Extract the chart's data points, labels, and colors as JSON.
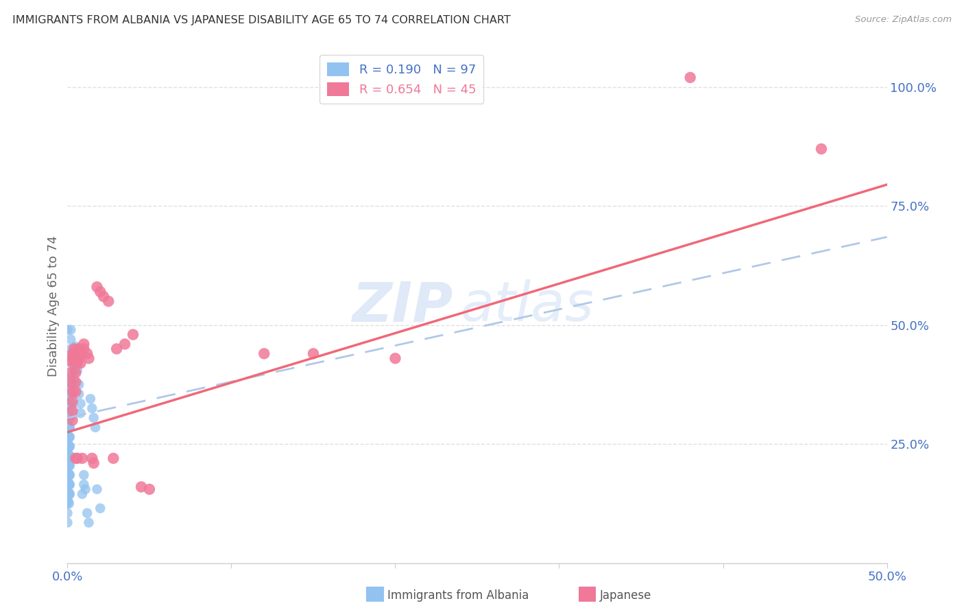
{
  "title": "IMMIGRANTS FROM ALBANIA VS JAPANESE DISABILITY AGE 65 TO 74 CORRELATION CHART",
  "source": "Source: ZipAtlas.com",
  "ylabel": "Disability Age 65 to 74",
  "legend_albania": "R = 0.190   N = 97",
  "legend_japanese": "R = 0.654   N = 45",
  "legend_label_albania": "Immigrants from Albania",
  "legend_label_japanese": "Japanese",
  "watermark_part1": "ZIP",
  "watermark_part2": "atlas",
  "albania_color": "#92c2f0",
  "japanese_color": "#f07898",
  "trendline_albania_color": "#b0c8e8",
  "trendline_japanese_color": "#f06878",
  "title_color": "#333333",
  "axis_label_color": "#4472c4",
  "source_color": "#999999",
  "grid_color": "#e8e8e8",
  "background_color": "#ffffff",
  "xlim": [
    0.0,
    0.5
  ],
  "ylim": [
    0.0,
    1.08
  ],
  "albania_points": [
    [
      0.0,
      0.305
    ],
    [
      0.0,
      0.285
    ],
    [
      0.0,
      0.265
    ],
    [
      0.0,
      0.245
    ],
    [
      0.0,
      0.225
    ],
    [
      0.0,
      0.205
    ],
    [
      0.0,
      0.185
    ],
    [
      0.0,
      0.165
    ],
    [
      0.0,
      0.145
    ],
    [
      0.0,
      0.125
    ],
    [
      0.0,
      0.105
    ],
    [
      0.0,
      0.085
    ],
    [
      0.0,
      0.325
    ],
    [
      0.0,
      0.345
    ],
    [
      0.0,
      0.365
    ],
    [
      0.0,
      0.385
    ],
    [
      0.0,
      0.49
    ],
    [
      0.0005,
      0.29
    ],
    [
      0.0005,
      0.31
    ],
    [
      0.0005,
      0.33
    ],
    [
      0.0005,
      0.25
    ],
    [
      0.0005,
      0.23
    ],
    [
      0.0005,
      0.21
    ],
    [
      0.0005,
      0.19
    ],
    [
      0.0005,
      0.17
    ],
    [
      0.0005,
      0.15
    ],
    [
      0.0005,
      0.13
    ],
    [
      0.001,
      0.305
    ],
    [
      0.001,
      0.285
    ],
    [
      0.001,
      0.265
    ],
    [
      0.001,
      0.245
    ],
    [
      0.001,
      0.225
    ],
    [
      0.001,
      0.205
    ],
    [
      0.001,
      0.185
    ],
    [
      0.001,
      0.165
    ],
    [
      0.001,
      0.145
    ],
    [
      0.001,
      0.125
    ],
    [
      0.001,
      0.325
    ],
    [
      0.001,
      0.345
    ],
    [
      0.001,
      0.365
    ],
    [
      0.001,
      0.285
    ],
    [
      0.001,
      0.265
    ],
    [
      0.001,
      0.245
    ],
    [
      0.001,
      0.225
    ],
    [
      0.001,
      0.205
    ],
    [
      0.001,
      0.185
    ],
    [
      0.001,
      0.165
    ],
    [
      0.001,
      0.145
    ],
    [
      0.0015,
      0.305
    ],
    [
      0.0015,
      0.285
    ],
    [
      0.0015,
      0.265
    ],
    [
      0.0015,
      0.245
    ],
    [
      0.0015,
      0.225
    ],
    [
      0.0015,
      0.205
    ],
    [
      0.0015,
      0.185
    ],
    [
      0.0015,
      0.165
    ],
    [
      0.0015,
      0.145
    ],
    [
      0.0015,
      0.305
    ],
    [
      0.0015,
      0.325
    ],
    [
      0.002,
      0.49
    ],
    [
      0.002,
      0.47
    ],
    [
      0.002,
      0.45
    ],
    [
      0.002,
      0.355
    ],
    [
      0.002,
      0.335
    ],
    [
      0.002,
      0.315
    ],
    [
      0.003,
      0.435
    ],
    [
      0.003,
      0.415
    ],
    [
      0.003,
      0.395
    ],
    [
      0.003,
      0.375
    ],
    [
      0.003,
      0.355
    ],
    [
      0.003,
      0.335
    ],
    [
      0.003,
      0.315
    ],
    [
      0.004,
      0.445
    ],
    [
      0.004,
      0.425
    ],
    [
      0.004,
      0.405
    ],
    [
      0.004,
      0.385
    ],
    [
      0.005,
      0.455
    ],
    [
      0.005,
      0.435
    ],
    [
      0.005,
      0.415
    ],
    [
      0.006,
      0.425
    ],
    [
      0.006,
      0.405
    ],
    [
      0.007,
      0.375
    ],
    [
      0.007,
      0.355
    ],
    [
      0.008,
      0.335
    ],
    [
      0.008,
      0.315
    ],
    [
      0.009,
      0.145
    ],
    [
      0.01,
      0.165
    ],
    [
      0.01,
      0.185
    ],
    [
      0.011,
      0.155
    ],
    [
      0.012,
      0.105
    ],
    [
      0.013,
      0.085
    ],
    [
      0.014,
      0.345
    ],
    [
      0.015,
      0.325
    ],
    [
      0.016,
      0.305
    ],
    [
      0.017,
      0.285
    ],
    [
      0.018,
      0.155
    ],
    [
      0.02,
      0.115
    ]
  ],
  "japanese_points": [
    [
      0.001,
      0.435
    ],
    [
      0.0015,
      0.425
    ],
    [
      0.002,
      0.4
    ],
    [
      0.002,
      0.38
    ],
    [
      0.003,
      0.36
    ],
    [
      0.003,
      0.34
    ],
    [
      0.003,
      0.32
    ],
    [
      0.003,
      0.3
    ],
    [
      0.004,
      0.45
    ],
    [
      0.004,
      0.43
    ],
    [
      0.004,
      0.44
    ],
    [
      0.004,
      0.42
    ],
    [
      0.005,
      0.4
    ],
    [
      0.005,
      0.38
    ],
    [
      0.005,
      0.36
    ],
    [
      0.005,
      0.22
    ],
    [
      0.006,
      0.44
    ],
    [
      0.006,
      0.42
    ],
    [
      0.006,
      0.22
    ],
    [
      0.007,
      0.45
    ],
    [
      0.007,
      0.43
    ],
    [
      0.008,
      0.44
    ],
    [
      0.008,
      0.42
    ],
    [
      0.009,
      0.22
    ],
    [
      0.01,
      0.46
    ],
    [
      0.01,
      0.45
    ],
    [
      0.012,
      0.44
    ],
    [
      0.013,
      0.43
    ],
    [
      0.015,
      0.22
    ],
    [
      0.016,
      0.21
    ],
    [
      0.018,
      0.58
    ],
    [
      0.02,
      0.57
    ],
    [
      0.022,
      0.56
    ],
    [
      0.025,
      0.55
    ],
    [
      0.028,
      0.22
    ],
    [
      0.03,
      0.45
    ],
    [
      0.035,
      0.46
    ],
    [
      0.04,
      0.48
    ],
    [
      0.045,
      0.16
    ],
    [
      0.05,
      0.155
    ],
    [
      0.12,
      0.44
    ],
    [
      0.15,
      0.44
    ],
    [
      0.2,
      0.43
    ],
    [
      0.38,
      1.02
    ],
    [
      0.46,
      0.87
    ]
  ],
  "albania_trend_x": [
    0.0,
    0.5
  ],
  "albania_trend_y": [
    0.305,
    0.685
  ],
  "japanese_trend_x": [
    0.0,
    0.5
  ],
  "japanese_trend_y": [
    0.275,
    0.795
  ]
}
